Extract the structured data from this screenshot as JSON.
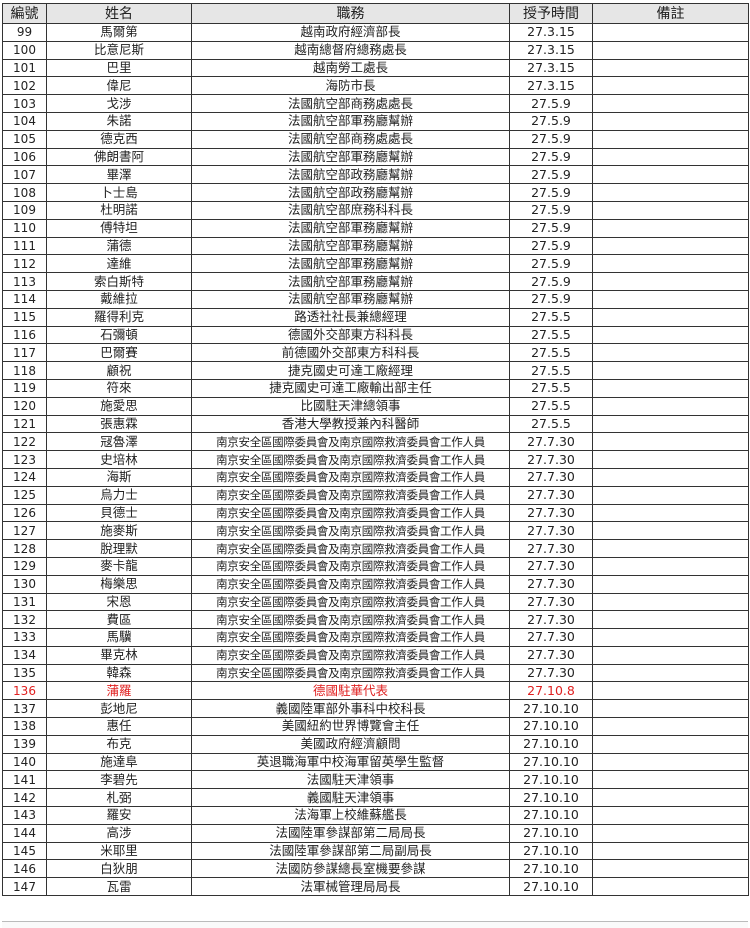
{
  "headers": {
    "no": "編號",
    "name": "姓名",
    "duty": "職務",
    "date": "授予時間",
    "note": "備註"
  },
  "highlight_color": "#e02020",
  "rows": [
    {
      "no": "99",
      "name": "馬爾第",
      "duty": "越南政府經濟部長",
      "date": "27.3.15",
      "note": ""
    },
    {
      "no": "100",
      "name": "比意尼斯",
      "duty": "越南總督府總務處長",
      "date": "27.3.15",
      "note": ""
    },
    {
      "no": "101",
      "name": "巴里",
      "duty": "越南勞工處長",
      "date": "27.3.15",
      "note": ""
    },
    {
      "no": "102",
      "name": "偉尼",
      "duty": "海防市長",
      "date": "27.3.15",
      "note": ""
    },
    {
      "no": "103",
      "name": "戈涉",
      "duty": "法國航空部商務處處長",
      "date": "27.5.9",
      "note": ""
    },
    {
      "no": "104",
      "name": "朱諾",
      "duty": "法國航空部軍務廳幫辦",
      "date": "27.5.9",
      "note": ""
    },
    {
      "no": "105",
      "name": "德克西",
      "duty": "法國航空部商務處處長",
      "date": "27.5.9",
      "note": ""
    },
    {
      "no": "106",
      "name": "佛朗書阿",
      "duty": "法國航空部軍務廳幫辦",
      "date": "27.5.9",
      "note": ""
    },
    {
      "no": "107",
      "name": "畢澤",
      "duty": "法國航空部政務廳幫辦",
      "date": "27.5.9",
      "note": ""
    },
    {
      "no": "108",
      "name": "卜士島",
      "duty": "法國航空部政務廳幫辦",
      "date": "27.5.9",
      "note": ""
    },
    {
      "no": "109",
      "name": "杜明諾",
      "duty": "法國航空部庶務科科長",
      "date": "27.5.9",
      "note": ""
    },
    {
      "no": "110",
      "name": "傅特坦",
      "duty": "法國航空部軍務廳幫辦",
      "date": "27.5.9",
      "note": ""
    },
    {
      "no": "111",
      "name": "蒲德",
      "duty": "法國航空部軍務廳幫辦",
      "date": "27.5.9",
      "note": ""
    },
    {
      "no": "112",
      "name": "達維",
      "duty": "法國航空部軍務廳幫辦",
      "date": "27.5.9",
      "note": ""
    },
    {
      "no": "113",
      "name": "索白斯特",
      "duty": "法國航空部軍務廳幫辦",
      "date": "27.5.9",
      "note": ""
    },
    {
      "no": "114",
      "name": "戴維拉",
      "duty": "法國航空部軍務廳幫辦",
      "date": "27.5.9",
      "note": ""
    },
    {
      "no": "115",
      "name": "羅得利克",
      "duty": "路透社社長兼總經理",
      "date": "27.5.5",
      "note": ""
    },
    {
      "no": "116",
      "name": "石彌頓",
      "duty": "德國外交部東方科科長",
      "date": "27.5.5",
      "note": ""
    },
    {
      "no": "117",
      "name": "巴爾賽",
      "duty": "前德國外交部東方科科長",
      "date": "27.5.5",
      "note": ""
    },
    {
      "no": "118",
      "name": "顧祝",
      "duty": "捷克國史可達工廠經理",
      "date": "27.5.5",
      "note": ""
    },
    {
      "no": "119",
      "name": "符來",
      "duty": "捷克國史可達工廠輸出部主任",
      "date": "27.5.5",
      "note": ""
    },
    {
      "no": "120",
      "name": "施愛思",
      "duty": "比國駐天津總領事",
      "date": "27.5.5",
      "note": ""
    },
    {
      "no": "121",
      "name": "張惠霖",
      "duty": "香港大學教授兼內科醫師",
      "date": "27.5.5",
      "note": ""
    },
    {
      "no": "122",
      "name": "冦魯澤",
      "duty": "南京安全區國際委員會及南京國際救濟委員會工作人員",
      "date": "27.7.30",
      "note": ""
    },
    {
      "no": "123",
      "name": "史培林",
      "duty": "南京安全區國際委員會及南京國際救濟委員會工作人員",
      "date": "27.7.30",
      "note": ""
    },
    {
      "no": "124",
      "name": "海斯",
      "duty": "南京安全區國際委員會及南京國際救濟委員會工作人員",
      "date": "27.7.30",
      "note": ""
    },
    {
      "no": "125",
      "name": "烏力士",
      "duty": "南京安全區國際委員會及南京國際救濟委員會工作人員",
      "date": "27.7.30",
      "note": ""
    },
    {
      "no": "126",
      "name": "貝德士",
      "duty": "南京安全區國際委員會及南京國際救濟委員會工作人員",
      "date": "27.7.30",
      "note": ""
    },
    {
      "no": "127",
      "name": "施麥斯",
      "duty": "南京安全區國際委員會及南京國際救濟委員會工作人員",
      "date": "27.7.30",
      "note": ""
    },
    {
      "no": "128",
      "name": "脫理默",
      "duty": "南京安全區國際委員會及南京國際救濟委員會工作人員",
      "date": "27.7.30",
      "note": ""
    },
    {
      "no": "129",
      "name": "麥卡龍",
      "duty": "南京安全區國際委員會及南京國際救濟委員會工作人員",
      "date": "27.7.30",
      "note": ""
    },
    {
      "no": "130",
      "name": "梅樂思",
      "duty": "南京安全區國際委員會及南京國際救濟委員會工作人員",
      "date": "27.7.30",
      "note": ""
    },
    {
      "no": "131",
      "name": "宋恩",
      "duty": "南京安全區國際委員會及南京國際救濟委員會工作人員",
      "date": "27.7.30",
      "note": ""
    },
    {
      "no": "132",
      "name": "費區",
      "duty": "南京安全區國際委員會及南京國際救濟委員會工作人員",
      "date": "27.7.30",
      "note": ""
    },
    {
      "no": "133",
      "name": "馬驥",
      "duty": "南京安全區國際委員會及南京國際救濟委員會工作人員",
      "date": "27.7.30",
      "note": ""
    },
    {
      "no": "134",
      "name": "畢克林",
      "duty": "南京安全區國際委員會及南京國際救濟委員會工作人員",
      "date": "27.7.30",
      "note": ""
    },
    {
      "no": "135",
      "name": "韓森",
      "duty": "南京安全區國際委員會及南京國際救濟委員會工作人員",
      "date": "27.7.30",
      "note": ""
    },
    {
      "no": "136",
      "name": "蒲羅",
      "duty": "德國駐華代表",
      "date": "27.10.8",
      "note": "",
      "highlight": true
    },
    {
      "no": "137",
      "name": "彭地尼",
      "duty": "義國陸軍部外事科中校科長",
      "date": "27.10.10",
      "note": ""
    },
    {
      "no": "138",
      "name": "惠任",
      "duty": "美國紐約世界博覽會主任",
      "date": "27.10.10",
      "note": ""
    },
    {
      "no": "139",
      "name": "布克",
      "duty": "美國政府經濟顧問",
      "date": "27.10.10",
      "note": ""
    },
    {
      "no": "140",
      "name": "施達阜",
      "duty": "英退職海軍中校海軍留英學生監督",
      "date": "27.10.10",
      "note": ""
    },
    {
      "no": "141",
      "name": "李碧先",
      "duty": "法國駐天津領事",
      "date": "27.10.10",
      "note": ""
    },
    {
      "no": "142",
      "name": "札弼",
      "duty": "義國駐天津領事",
      "date": "27.10.10",
      "note": ""
    },
    {
      "no": "143",
      "name": "羅安",
      "duty": "法海軍上校維蘇艦長",
      "date": "27.10.10",
      "note": ""
    },
    {
      "no": "144",
      "name": "高涉",
      "duty": "法國陸軍參謀部第二局局長",
      "date": "27.10.10",
      "note": ""
    },
    {
      "no": "145",
      "name": "米耶里",
      "duty": "法國陸軍參謀部第二局副局長",
      "date": "27.10.10",
      "note": ""
    },
    {
      "no": "146",
      "name": "白狄朋",
      "duty": "法國防參謀總長室機要參謀",
      "date": "27.10.10",
      "note": ""
    },
    {
      "no": "147",
      "name": "瓦雷",
      "duty": "法軍械管理局局長",
      "date": "27.10.10",
      "note": ""
    }
  ]
}
